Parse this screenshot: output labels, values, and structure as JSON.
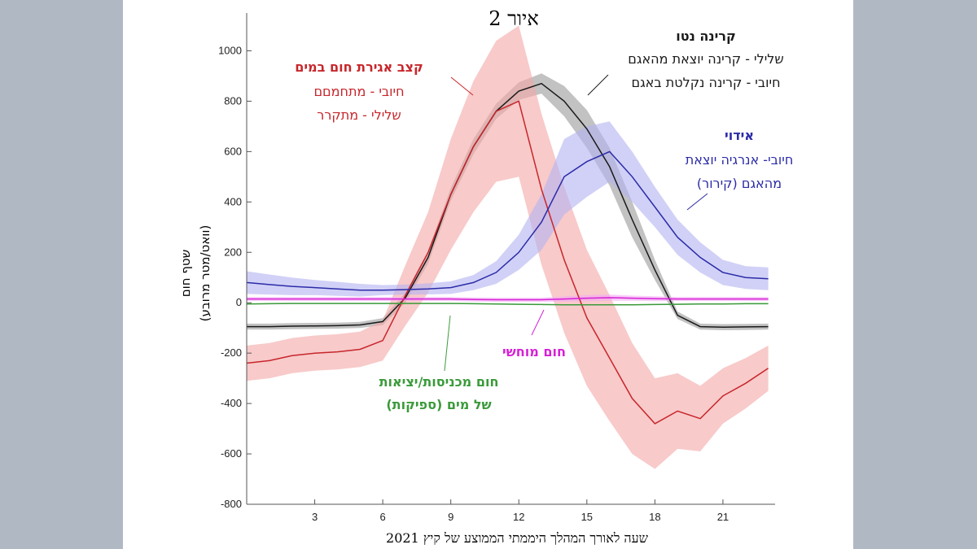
{
  "chart_data": {
    "type": "line",
    "title": "איור 2",
    "xlabel": "שעה לאורך המהלך היממתי הממוצע של קיץ 2021",
    "ylabel_line1": "שטף חום",
    "ylabel_line2": "(וואט/מטר מרובע)",
    "xlim": [
      0,
      23.3
    ],
    "ylim": [
      -800,
      1150
    ],
    "xticks": [
      3,
      6,
      9,
      12,
      15,
      18,
      21
    ],
    "yticks": [
      1000,
      800,
      600,
      400,
      200,
      0,
      -200,
      -400,
      -600,
      -800
    ],
    "x": [
      0,
      1,
      2,
      3,
      4,
      5,
      6,
      7,
      8,
      9,
      10,
      11,
      12,
      13,
      14,
      15,
      16,
      17,
      18,
      19,
      20,
      21,
      22,
      23
    ],
    "series": [
      {
        "name": "קרינה נטו",
        "color": "#1a1a1a",
        "band_color": "#9a9a9a",
        "values": [
          -95,
          -95,
          -93,
          -92,
          -91,
          -88,
          -75,
          20,
          180,
          430,
          620,
          760,
          840,
          870,
          800,
          690,
          540,
          330,
          130,
          -50,
          -95,
          -97,
          -96,
          -95
        ],
        "band": [
          12,
          12,
          12,
          12,
          12,
          12,
          14,
          20,
          25,
          25,
          30,
          30,
          35,
          40,
          60,
          75,
          75,
          70,
          40,
          15,
          12,
          12,
          12,
          12
        ]
      },
      {
        "name": "קצב אגירת חום במים",
        "color": "#c7262b",
        "band_color": "#f4a7a7",
        "values": [
          -240,
          -230,
          -210,
          -200,
          -195,
          -185,
          -150,
          30,
          200,
          430,
          620,
          760,
          800,
          450,
          170,
          -60,
          -220,
          -380,
          -480,
          -430,
          -460,
          -370,
          -320,
          -260
        ],
        "band": [
          70,
          70,
          70,
          70,
          70,
          70,
          80,
          120,
          160,
          220,
          260,
          280,
          300,
          300,
          290,
          270,
          250,
          220,
          180,
          150,
          130,
          110,
          100,
          90
        ]
      },
      {
        "name": "אידוי",
        "color": "#2b2ba8",
        "band_color": "#b3b3f2",
        "values": [
          80,
          72,
          65,
          60,
          55,
          50,
          50,
          52,
          55,
          60,
          80,
          120,
          200,
          320,
          500,
          560,
          600,
          500,
          380,
          260,
          180,
          120,
          100,
          95
        ],
        "band": [
          45,
          40,
          35,
          30,
          28,
          25,
          20,
          20,
          22,
          25,
          30,
          45,
          70,
          110,
          150,
          140,
          120,
          100,
          80,
          70,
          60,
          50,
          45,
          45
        ]
      },
      {
        "name": "חום מוחשי",
        "color": "#d620d6",
        "band_color": "#f4a6f4",
        "values": [
          15,
          15,
          15,
          15,
          15,
          15,
          15,
          15,
          15,
          15,
          13,
          12,
          12,
          12,
          15,
          18,
          20,
          18,
          16,
          15,
          15,
          15,
          15,
          15
        ],
        "band": [
          8,
          8,
          8,
          8,
          8,
          8,
          8,
          8,
          8,
          8,
          8,
          8,
          8,
          8,
          10,
          12,
          12,
          10,
          10,
          8,
          8,
          8,
          8,
          8
        ]
      },
      {
        "name": "חום מכניסות/יציאות של מים",
        "color": "#3a9a3a",
        "band_color": "#b8e0b8",
        "values": [
          -5,
          -4,
          -3,
          -3,
          -3,
          -3,
          -3,
          -3,
          -3,
          -3,
          -4,
          -5,
          -6,
          -7,
          -8,
          -8,
          -8,
          -8,
          -7,
          -6,
          -5,
          -5,
          -4,
          -4
        ],
        "band": [
          2,
          2,
          2,
          2,
          2,
          2,
          2,
          2,
          2,
          2,
          2,
          2,
          2,
          2,
          2,
          2,
          2,
          2,
          2,
          2,
          2,
          2,
          2,
          2
        ]
      }
    ],
    "annotations": {
      "storage": {
        "title": "קצב אגירת חום במים",
        "line1": "חיובי - מתחמםם",
        "line2": "שלילי - מתקרר"
      },
      "net": {
        "title": "קרינה נטו",
        "line1": "שלילי - קרינה יוצאת מהאגם",
        "line2": "חיובי - קרינה נקלטת באגם"
      },
      "evap": {
        "title": "אידוי",
        "line1": "חיובי- אנרגיה יוצאת",
        "line2": "מהאגם (קירור)"
      },
      "sensible": {
        "title": "חום מוחשי"
      },
      "inflow": {
        "line1": "חום מכניסות/יציאות",
        "line2": "של מים (ספיקות)"
      }
    },
    "colors": {
      "storage": "#c7262b",
      "net": "#1a1a1a",
      "evap": "#2b2ba8",
      "sensible": "#d620d6",
      "inflow": "#3a9a3a"
    }
  }
}
